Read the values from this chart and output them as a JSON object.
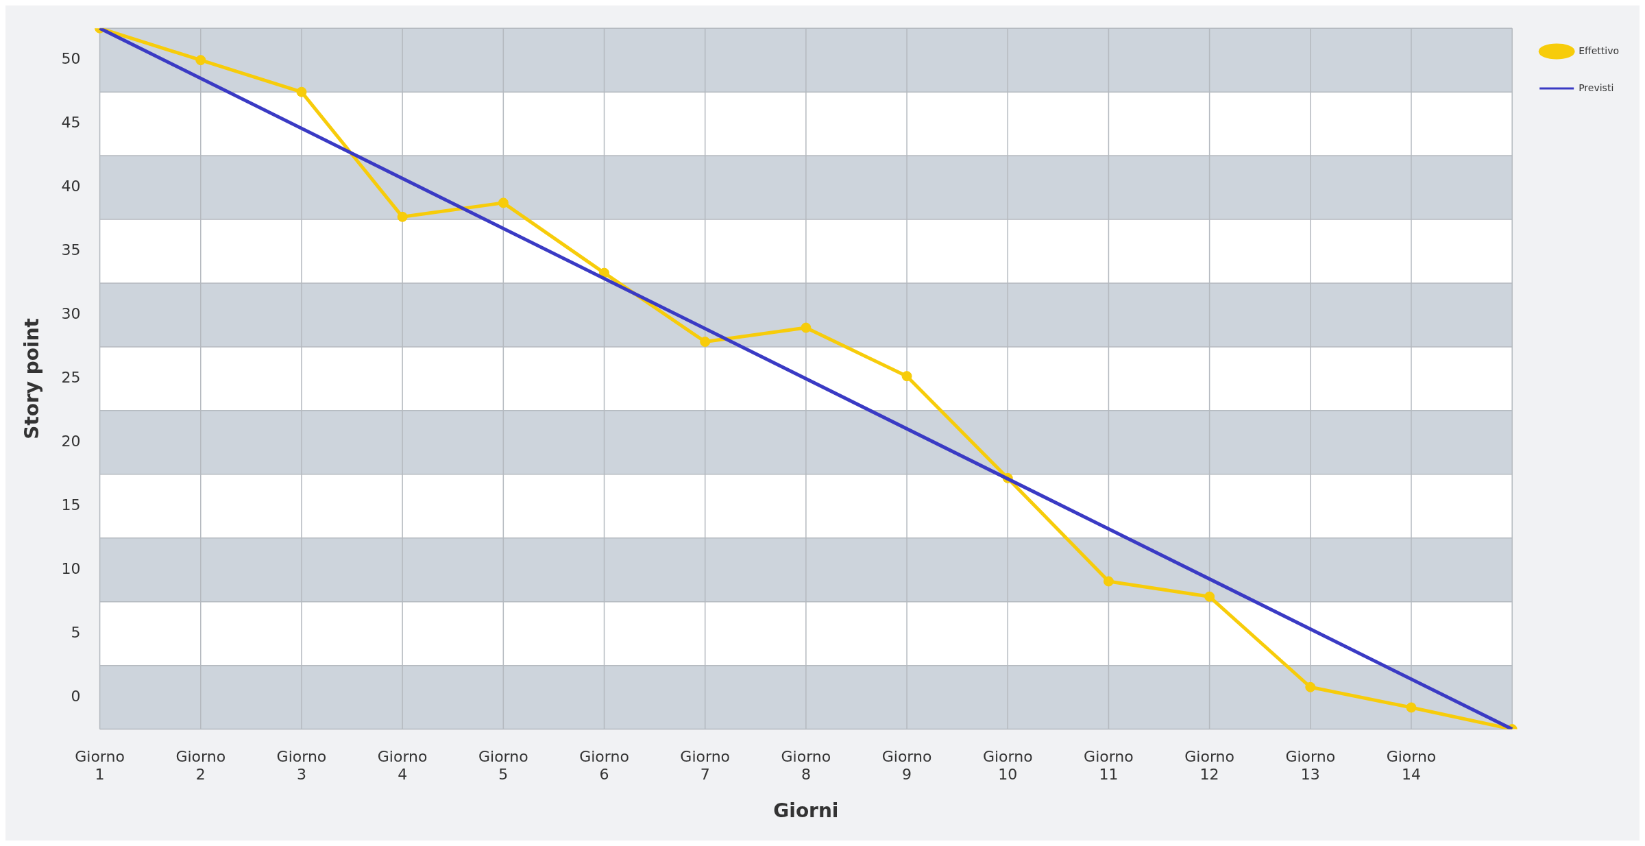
{
  "chart_data": {
    "type": "line",
    "xlabel": "Giorni",
    "ylabel": "Story point",
    "categories": [
      "Giorno 1",
      "Giorno 2",
      "Giorno 3",
      "Giorno 4",
      "Giorno 5",
      "Giorno 6",
      "Giorno 7",
      "Giorno 8",
      "Giorno 9",
      "Giorno 10",
      "Giorno 11",
      "Giorno 12",
      "Giorno 13",
      "Giorno 14",
      null
    ],
    "ylim": [
      -2.5,
      52.5
    ],
    "yticks": [
      0,
      5,
      10,
      15,
      20,
      25,
      30,
      35,
      40,
      45,
      50
    ],
    "grid": true,
    "legend": "top right",
    "bands": [
      {
        "axis": "y",
        "from": -2.5,
        "to": 2.5,
        "color": "#cdd4dc"
      },
      {
        "axis": "y",
        "from": 7.5,
        "to": 12.5,
        "color": "#cdd4dc"
      },
      {
        "axis": "y",
        "from": 17.5,
        "to": 22.5,
        "color": "#cdd4dc"
      },
      {
        "axis": "y",
        "from": 27.5,
        "to": 32.5,
        "color": "#cdd4dc"
      },
      {
        "axis": "y",
        "from": 37.5,
        "to": 42.5,
        "color": "#cdd4dc"
      },
      {
        "axis": "y",
        "from": 47.5,
        "to": 52.5,
        "color": "#cdd4dc"
      }
    ],
    "series": [
      {
        "name": "Effettivo",
        "color": "#f7cc0a",
        "marker": "circle",
        "values": [
          52.5,
          50,
          47.5,
          37.7,
          38.8,
          33.3,
          27.9,
          29,
          25.2,
          17.2,
          9.1,
          7.9,
          0.8,
          -0.8,
          -2.5
        ]
      },
      {
        "name": "Previsti",
        "color": "#3a3ac4",
        "marker": "none",
        "values": [
          52.5,
          null,
          null,
          null,
          null,
          null,
          null,
          null,
          null,
          null,
          null,
          null,
          null,
          null,
          -2.5
        ]
      }
    ]
  }
}
